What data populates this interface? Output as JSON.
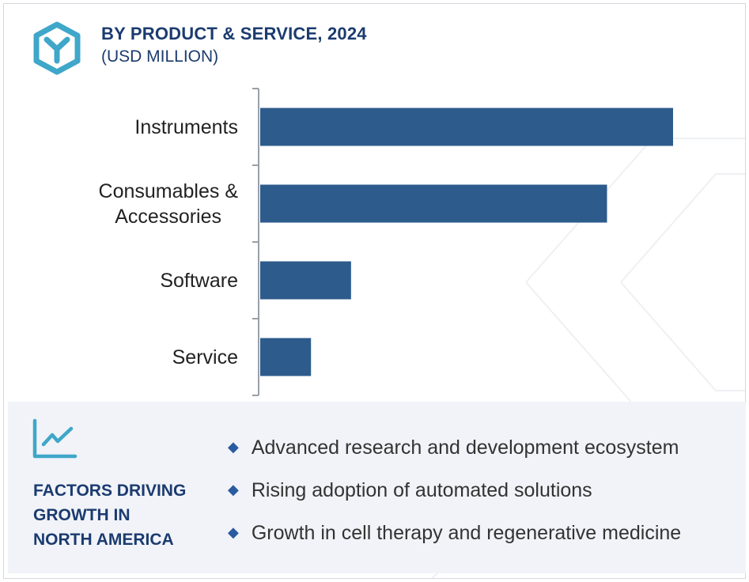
{
  "header": {
    "logo_icon": "cube-y-icon",
    "title": "BY PRODUCT & SERVICE, 2024",
    "subtitle": "(USD MILLION)"
  },
  "colors": {
    "bar": "#2d5b8c",
    "title": "#1b3b6f",
    "accent": "#3fa7c9"
  },
  "chart_data": {
    "type": "bar",
    "orientation": "horizontal",
    "title": "BY PRODUCT & SERVICE, 2024",
    "subtitle": "(USD MILLION)",
    "categories": [
      "Instruments",
      "Consumables & Accessories",
      "Software",
      "Service"
    ],
    "category_lines": [
      [
        "Instruments"
      ],
      [
        "Consumables &",
        "Accessories"
      ],
      [
        "Software"
      ],
      [
        "Service"
      ]
    ],
    "values": [
      100,
      84,
      22,
      12.3
    ],
    "xlim": [
      0,
      100
    ],
    "xlabel": "",
    "ylabel": "",
    "grid": false,
    "legend": "none"
  },
  "factors": {
    "icon": "line-chart-icon",
    "title_lines": [
      "FACTORS DRIVING",
      "GROWTH IN",
      "NORTH AMERICA"
    ],
    "bullet_icon": "diamond-icon",
    "items": [
      "Advanced research and development ecosystem",
      "Rising adoption of automated solutions",
      "Growth in cell therapy and regenerative medicine"
    ]
  }
}
